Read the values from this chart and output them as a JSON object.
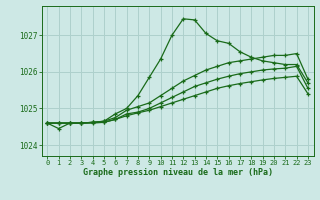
{
  "xlabel": "Graphe pression niveau de la mer (hPa)",
  "bg_color": "#cde8e5",
  "grid_color": "#aed0cc",
  "line_color": "#1a6b1a",
  "text_color": "#1a6b1a",
  "ylim": [
    1023.7,
    1027.8
  ],
  "yticks": [
    1024,
    1025,
    1026,
    1027
  ],
  "xticks": [
    0,
    1,
    2,
    3,
    4,
    5,
    6,
    7,
    8,
    9,
    10,
    11,
    12,
    13,
    14,
    15,
    16,
    17,
    18,
    19,
    20,
    21,
    22,
    23
  ],
  "series1_x": [
    0,
    1,
    2,
    3,
    4,
    5,
    6,
    7,
    8,
    9,
    10,
    11,
    12,
    13,
    14,
    15,
    16,
    17,
    18,
    19,
    20,
    21,
    22,
    23
  ],
  "series1_y": [
    1024.6,
    1024.45,
    1024.6,
    1024.6,
    1024.62,
    1024.65,
    1024.85,
    1025.0,
    1025.35,
    1025.85,
    1026.35,
    1027.0,
    1027.45,
    1027.42,
    1027.05,
    1026.85,
    1026.78,
    1026.55,
    1026.4,
    1026.3,
    1026.25,
    1026.2,
    1026.2,
    1025.7
  ],
  "series2_x": [
    0,
    1,
    2,
    3,
    4,
    5,
    6,
    7,
    8,
    9,
    10,
    11,
    12,
    13,
    14,
    15,
    16,
    17,
    18,
    19,
    20,
    21,
    22,
    23
  ],
  "series2_y": [
    1024.6,
    1024.6,
    1024.6,
    1024.6,
    1024.62,
    1024.65,
    1024.75,
    1024.95,
    1025.05,
    1025.15,
    1025.35,
    1025.55,
    1025.75,
    1025.9,
    1026.05,
    1026.15,
    1026.25,
    1026.3,
    1026.35,
    1026.4,
    1026.45,
    1026.45,
    1026.5,
    1025.8
  ],
  "series3_x": [
    0,
    1,
    2,
    3,
    4,
    5,
    6,
    7,
    8,
    9,
    10,
    11,
    12,
    13,
    14,
    15,
    16,
    17,
    18,
    19,
    20,
    21,
    22,
    23
  ],
  "series3_y": [
    1024.6,
    1024.6,
    1024.6,
    1024.6,
    1024.62,
    1024.62,
    1024.7,
    1024.85,
    1024.9,
    1025.0,
    1025.15,
    1025.3,
    1025.45,
    1025.6,
    1025.7,
    1025.8,
    1025.88,
    1025.95,
    1026.0,
    1026.05,
    1026.08,
    1026.1,
    1026.15,
    1025.55
  ],
  "series4_x": [
    0,
    1,
    2,
    3,
    4,
    5,
    6,
    7,
    8,
    9,
    10,
    11,
    12,
    13,
    14,
    15,
    16,
    17,
    18,
    19,
    20,
    21,
    22,
    23
  ],
  "series4_y": [
    1024.6,
    1024.6,
    1024.6,
    1024.6,
    1024.6,
    1024.62,
    1024.7,
    1024.8,
    1024.88,
    1024.95,
    1025.05,
    1025.15,
    1025.25,
    1025.35,
    1025.45,
    1025.55,
    1025.62,
    1025.68,
    1025.73,
    1025.78,
    1025.82,
    1025.85,
    1025.88,
    1025.4
  ]
}
